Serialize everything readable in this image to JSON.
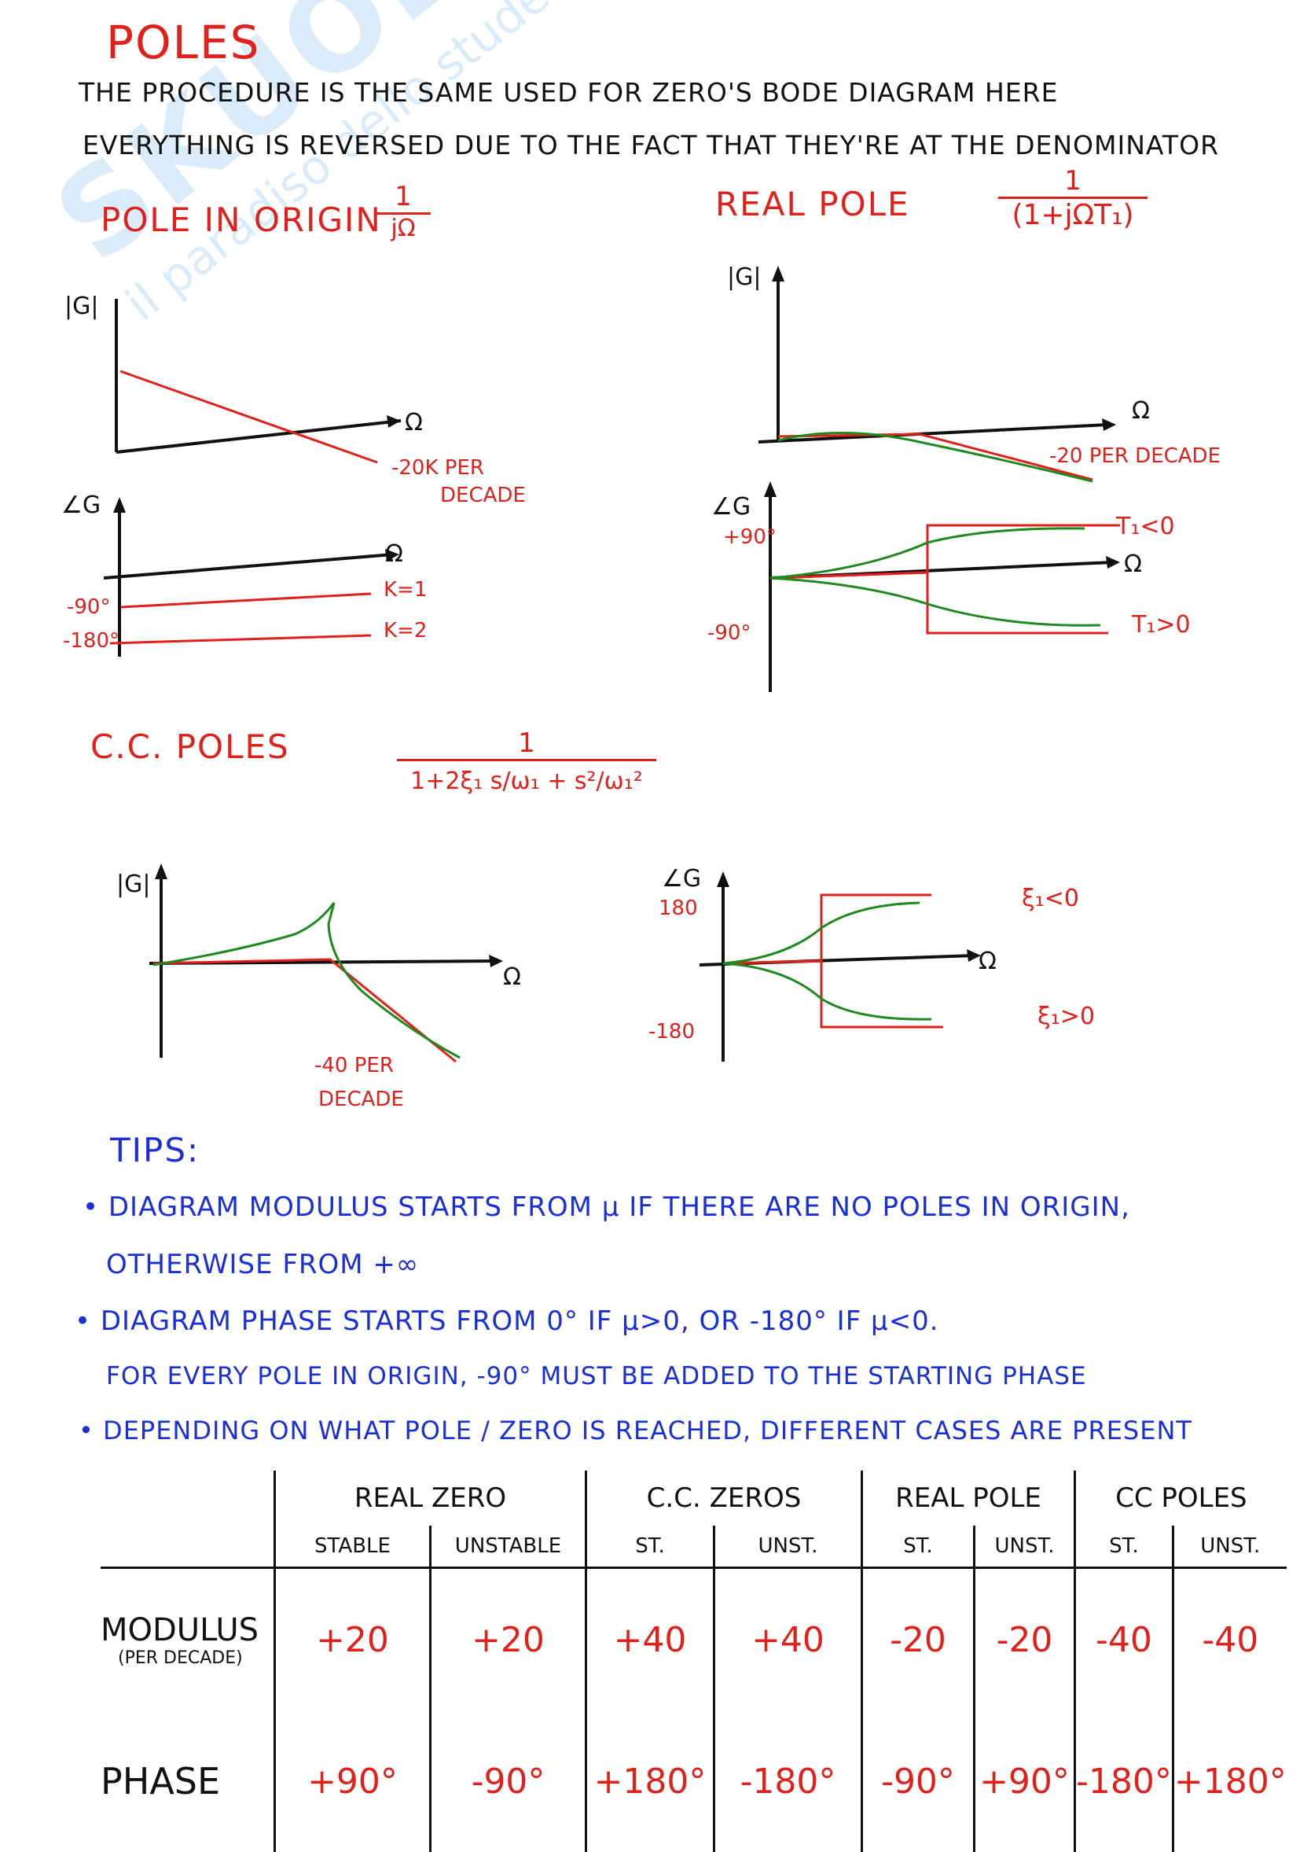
{
  "title": "POLES",
  "intro": [
    "THE PROCEDURE IS THE SAME USED FOR ZERO'S BODE DIAGRAM HERE",
    "EVERYTHING IS REVERSED DUE TO THE FACT THAT THEY'RE AT THE DENOMINATOR"
  ],
  "watermark": {
    "main": "SKUOLA.net",
    "sub": "il paradiso dello studente"
  },
  "pole_origin": {
    "title": "POLE IN ORIGIN",
    "tf_num": "1",
    "tf_den": "jΩ",
    "mag_axis": "|G|",
    "omega": "Ω",
    "slope": [
      "-20K PER",
      "DECADE"
    ],
    "phase_axis": "∠G",
    "phase_ticks": [
      "-90°",
      "-180°"
    ],
    "k_labels": [
      "K=1",
      "K=2"
    ]
  },
  "real_pole": {
    "title": "REAL POLE",
    "tf_num": "1",
    "tf_den": "(1+jΩT₁)",
    "mag_axis": "|G|",
    "omega": "Ω",
    "slope": "-20 PER DECADE",
    "phase_axis": "∠G",
    "phase_ticks": [
      "+90°",
      "-90°"
    ],
    "cases": [
      "T₁<0",
      "T₁>0"
    ]
  },
  "cc_poles": {
    "title": "C.C. POLES",
    "tf_num": "1",
    "tf_den": "1+2ξ₁ s/ω₁ + s²/ω₁²",
    "mag_axis": "|G|",
    "omega": "Ω",
    "slope": [
      "-40 PER",
      "DECADE"
    ],
    "phase_axis": "∠G",
    "phase_ticks": [
      "180",
      "-180"
    ],
    "cases": [
      "ξ₁<0",
      "ξ₁>0"
    ]
  },
  "tips": {
    "title": "TIPS:",
    "items": [
      [
        "DIAGRAM MODULUS STARTS FROM μ IF THERE ARE NO POLES IN ORIGIN,",
        "OTHERWISE FROM +∞"
      ],
      [
        "DIAGRAM PHASE STARTS FROM 0° IF μ>0, OR -180° IF μ<0.",
        "FOR EVERY POLE IN ORIGIN, -90° MUST BE ADDED TO THE STARTING PHASE"
      ],
      [
        "DEPENDING ON WHAT POLE / ZERO IS REACHED, DIFFERENT CASES ARE PRESENT"
      ]
    ]
  },
  "table": {
    "groups": [
      "REAL ZERO",
      "C.C. ZEROS",
      "REAL POLE",
      "CC POLES"
    ],
    "subs": [
      "STABLE",
      "UNSTABLE",
      "ST.",
      "UNST.",
      "ST.",
      "UNST.",
      "ST.",
      "UNST."
    ],
    "rows": [
      {
        "label": "MODULUS",
        "sublabel": "(PER DECADE)",
        "values": [
          "+20",
          "+20",
          "+40",
          "+40",
          "-20",
          "-20",
          "-40",
          "-40"
        ]
      },
      {
        "label": "PHASE",
        "sublabel": "",
        "values": [
          "+90°",
          "-90°",
          "+180°",
          "-180°",
          "-90°",
          "+90°",
          "-180°",
          "+180°"
        ]
      }
    ]
  },
  "colors": {
    "ink": "#111111",
    "red": "#e0201a",
    "green": "#1e8a1e",
    "blue": "#1a2fd6"
  }
}
